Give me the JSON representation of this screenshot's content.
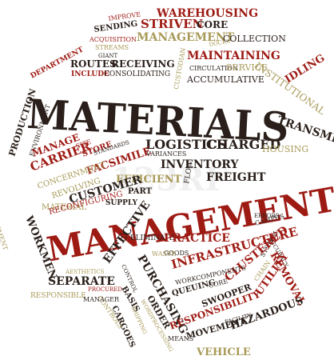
{
  "colors": {
    "dark": "#2a1f1a",
    "red": "#9e1b14",
    "olive": "#a89a58",
    "background": "#ffffff"
  },
  "headline": {
    "word1": "MATERIALS",
    "word2": "MANAGEMENT"
  },
  "words": [
    "WAREHOUSING",
    "IMPROVE",
    "STRIVEN",
    "CORE",
    "SENDING",
    "MANAGEMENT",
    "DOCKS",
    "COLLECTION",
    "ACQUISITION",
    "STREAMS",
    "GIANT",
    "MAINTAINING",
    "ROUTES",
    "RECEIVING",
    "DEPARTMENT",
    "INCLUDE",
    "CONSOLIDATING",
    "CIRCULATION",
    "SERVICE",
    "ACCUMULATIVE",
    "CUSTODIAN",
    "INSTITUTIONAL",
    "IDLING",
    "PRODUCTION",
    "TRANSMIT",
    "ENVIRONMENT",
    "LOGISTICS",
    "CHARGED",
    "HOUSING",
    "MANAGE",
    "CARRIER",
    "SITE",
    "STORE",
    "STANDARDS",
    "FACSIMILE",
    "VARIANCES",
    "INVENTORY",
    "CONCERNMENT",
    "REVOLVING",
    "EFFICIENT",
    "FREIGHT",
    "FLOW",
    "PROCUREMENT",
    "MATERIAL",
    "CUSTOMER",
    "SUPPLY",
    "PART",
    "RECONFIGURING",
    "WORKMEN",
    "ERRORS",
    "CAMPUS",
    "ACCURACY",
    "ELIMINATE",
    "PRACTICE",
    "GOODS",
    "WASTE",
    "INFRASTRUCTURE",
    "SYSTEM",
    "CLUSTERED",
    "REMOVAL",
    "EFFECTIVE",
    "CONTROL",
    "WORKCOMPONENTS",
    "PURCHASING",
    "QUEUING",
    "CORE",
    "CHAIN",
    "UTILITY",
    "SEPARATE",
    "AESTHETICS",
    "CONTROLS",
    "SWOOPER",
    "RESPONSIBILITY",
    "RESPONSIBLE",
    "MANAGER",
    "PROCURED",
    "BASIS",
    "WORDPROCESSING",
    "HAZARDOUS",
    "CARGOES",
    "SHIPPING",
    "ORDER",
    "MEANS",
    "MOVEMENT",
    "FACILITY",
    "VEHICLE"
  ],
  "watermark": "123RF"
}
